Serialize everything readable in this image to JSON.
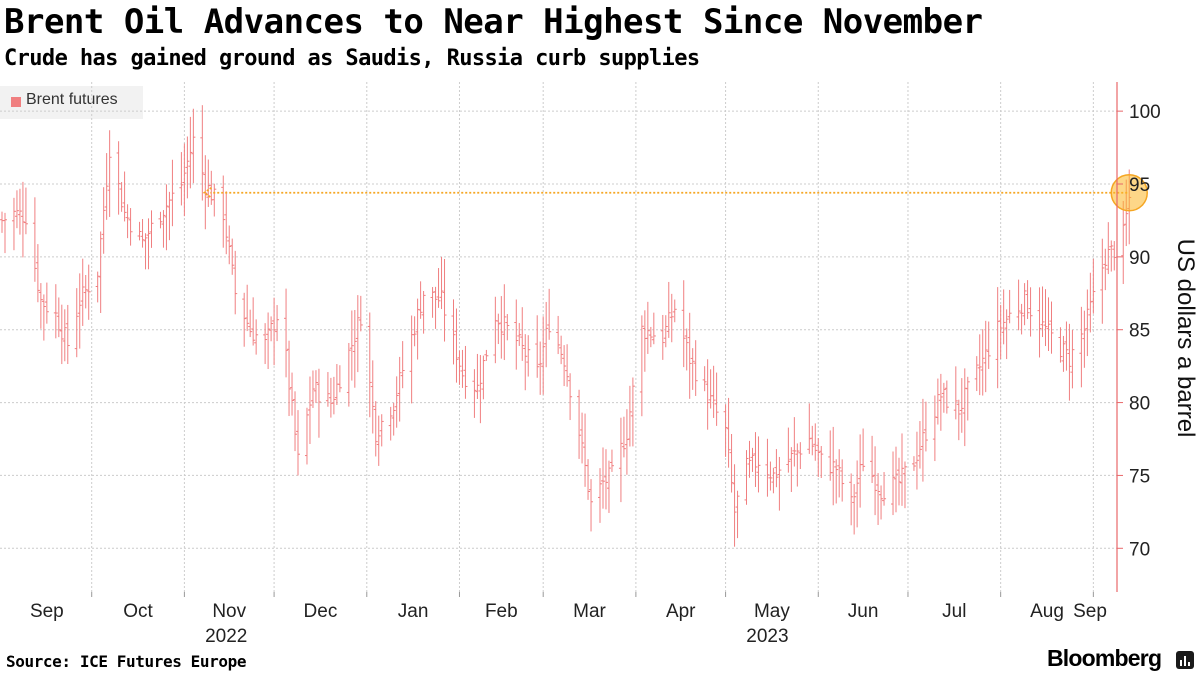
{
  "title": "Brent Oil Advances to Near Highest Since November",
  "subtitle": "Crude has gained ground as Saudis, Russia curb supplies",
  "source": "Source: ICE Futures Europe",
  "brand": "Bloomberg",
  "colors": {
    "series": "#f07f80",
    "highlight": "#f5a623",
    "highlight_fill": "#fbb726",
    "axis": "#e8676a",
    "grid": "#cccccc"
  },
  "chart_data": {
    "type": "ohlc",
    "title": "Brent Oil Advances to Near Highest Since November",
    "subtitle": "Crude has gained ground as Saudis, Russia curb supplies",
    "ylabel": "US dollars a barrel",
    "ylim": [
      67,
      102
    ],
    "yticks": [
      70,
      75,
      80,
      85,
      90,
      95,
      100
    ],
    "legend": {
      "placement": "top-left",
      "entries": [
        "Brent futures"
      ]
    },
    "grid": true,
    "x_months": [
      "Sep",
      "Oct",
      "Nov",
      "Dec",
      "Jan",
      "Feb",
      "Mar",
      "Apr",
      "May",
      "Jun",
      "Jul",
      "Aug",
      "Sep"
    ],
    "x_years": [
      "2022",
      "2023"
    ],
    "series": [
      {
        "name": "Brent futures",
        "x_start": "2022-09-01",
        "x_end": "2023-09-13",
        "close_anchors": [
          [
            "2022-09-01",
            92.5
          ],
          [
            "2022-09-05",
            93.0
          ],
          [
            "2022-09-09",
            92.8
          ],
          [
            "2022-09-14",
            87.0
          ],
          [
            "2022-09-19",
            86.0
          ],
          [
            "2022-09-23",
            84.0
          ],
          [
            "2022-09-27",
            87.0
          ],
          [
            "2022-09-30",
            88.0
          ],
          [
            "2022-10-03",
            89.0
          ],
          [
            "2022-10-07",
            97.5
          ],
          [
            "2022-10-12",
            93.0
          ],
          [
            "2022-10-18",
            91.0
          ],
          [
            "2022-10-24",
            93.0
          ],
          [
            "2022-10-31",
            95.0
          ],
          [
            "2022-11-04",
            98.0
          ],
          [
            "2022-11-08",
            95.0
          ],
          [
            "2022-11-14",
            93.0
          ],
          [
            "2022-11-18",
            87.5
          ],
          [
            "2022-11-23",
            85.0
          ],
          [
            "2022-11-28",
            84.0
          ],
          [
            "2022-12-02",
            86.0
          ],
          [
            "2022-12-05",
            83.0
          ],
          [
            "2022-12-09",
            76.0
          ],
          [
            "2022-12-14",
            81.0
          ],
          [
            "2022-12-20",
            80.0
          ],
          [
            "2022-12-27",
            84.0
          ],
          [
            "2022-12-30",
            86.0
          ],
          [
            "2023-01-04",
            78.0
          ],
          [
            "2023-01-10",
            80.0
          ],
          [
            "2023-01-16",
            84.5
          ],
          [
            "2023-01-20",
            87.5
          ],
          [
            "2023-01-26",
            87.0
          ],
          [
            "2023-02-02",
            82.0
          ],
          [
            "2023-02-07",
            81.0
          ],
          [
            "2023-02-13",
            86.0
          ],
          [
            "2023-02-21",
            84.0
          ],
          [
            "2023-02-27",
            82.0
          ],
          [
            "2023-03-03",
            85.5
          ],
          [
            "2023-03-08",
            83.0
          ],
          [
            "2023-03-13",
            78.0
          ],
          [
            "2023-03-17",
            73.0
          ],
          [
            "2023-03-21",
            74.5
          ],
          [
            "2023-03-24",
            75.0
          ],
          [
            "2023-03-29",
            78.0
          ],
          [
            "2023-04-03",
            85.0
          ],
          [
            "2023-04-10",
            84.5
          ],
          [
            "2023-04-14",
            86.5
          ],
          [
            "2023-04-19",
            83.0
          ],
          [
            "2023-04-25",
            80.5
          ],
          [
            "2023-05-01",
            78.0
          ],
          [
            "2023-05-04",
            72.5
          ],
          [
            "2023-05-08",
            75.5
          ],
          [
            "2023-05-12",
            76.0
          ],
          [
            "2023-05-17",
            75.0
          ],
          [
            "2023-05-22",
            76.0
          ],
          [
            "2023-05-29",
            77.5
          ],
          [
            "2023-06-02",
            76.0
          ],
          [
            "2023-06-07",
            75.5
          ],
          [
            "2023-06-12",
            73.0
          ],
          [
            "2023-06-16",
            76.0
          ],
          [
            "2023-06-22",
            74.0
          ],
          [
            "2023-06-28",
            74.5
          ],
          [
            "2023-07-03",
            76.0
          ],
          [
            "2023-07-07",
            78.0
          ],
          [
            "2023-07-12",
            80.5
          ],
          [
            "2023-07-18",
            79.5
          ],
          [
            "2023-07-24",
            82.0
          ],
          [
            "2023-07-31",
            85.0
          ],
          [
            "2023-08-04",
            86.0
          ],
          [
            "2023-08-09",
            87.0
          ],
          [
            "2023-08-14",
            85.5
          ],
          [
            "2023-08-18",
            84.5
          ],
          [
            "2023-08-24",
            83.0
          ],
          [
            "2023-08-29",
            85.0
          ],
          [
            "2023-08-31",
            86.5
          ],
          [
            "2023-09-05",
            90.0
          ],
          [
            "2023-09-08",
            90.5
          ],
          [
            "2023-09-11",
            91.5
          ],
          [
            "2023-09-13",
            94.0
          ]
        ],
        "highlight": {
          "date": "2023-09-13",
          "value": 94.4
        },
        "reference_line": {
          "from": "2023-09-13",
          "to": "2022-11-07",
          "value": 94.4
        }
      }
    ]
  }
}
